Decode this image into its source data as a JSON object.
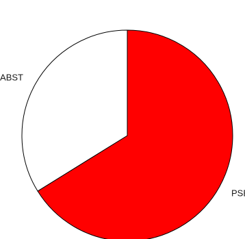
{
  "chart_data": {
    "type": "pie",
    "title": "",
    "start_angle_deg": 90,
    "direction": "clockwise",
    "slices": [
      {
        "label": "PSE",
        "value": 0.6618,
        "color": "#ff0000"
      },
      {
        "label": "ABST",
        "value": 0.3382,
        "color": "#ffffff"
      }
    ]
  }
}
